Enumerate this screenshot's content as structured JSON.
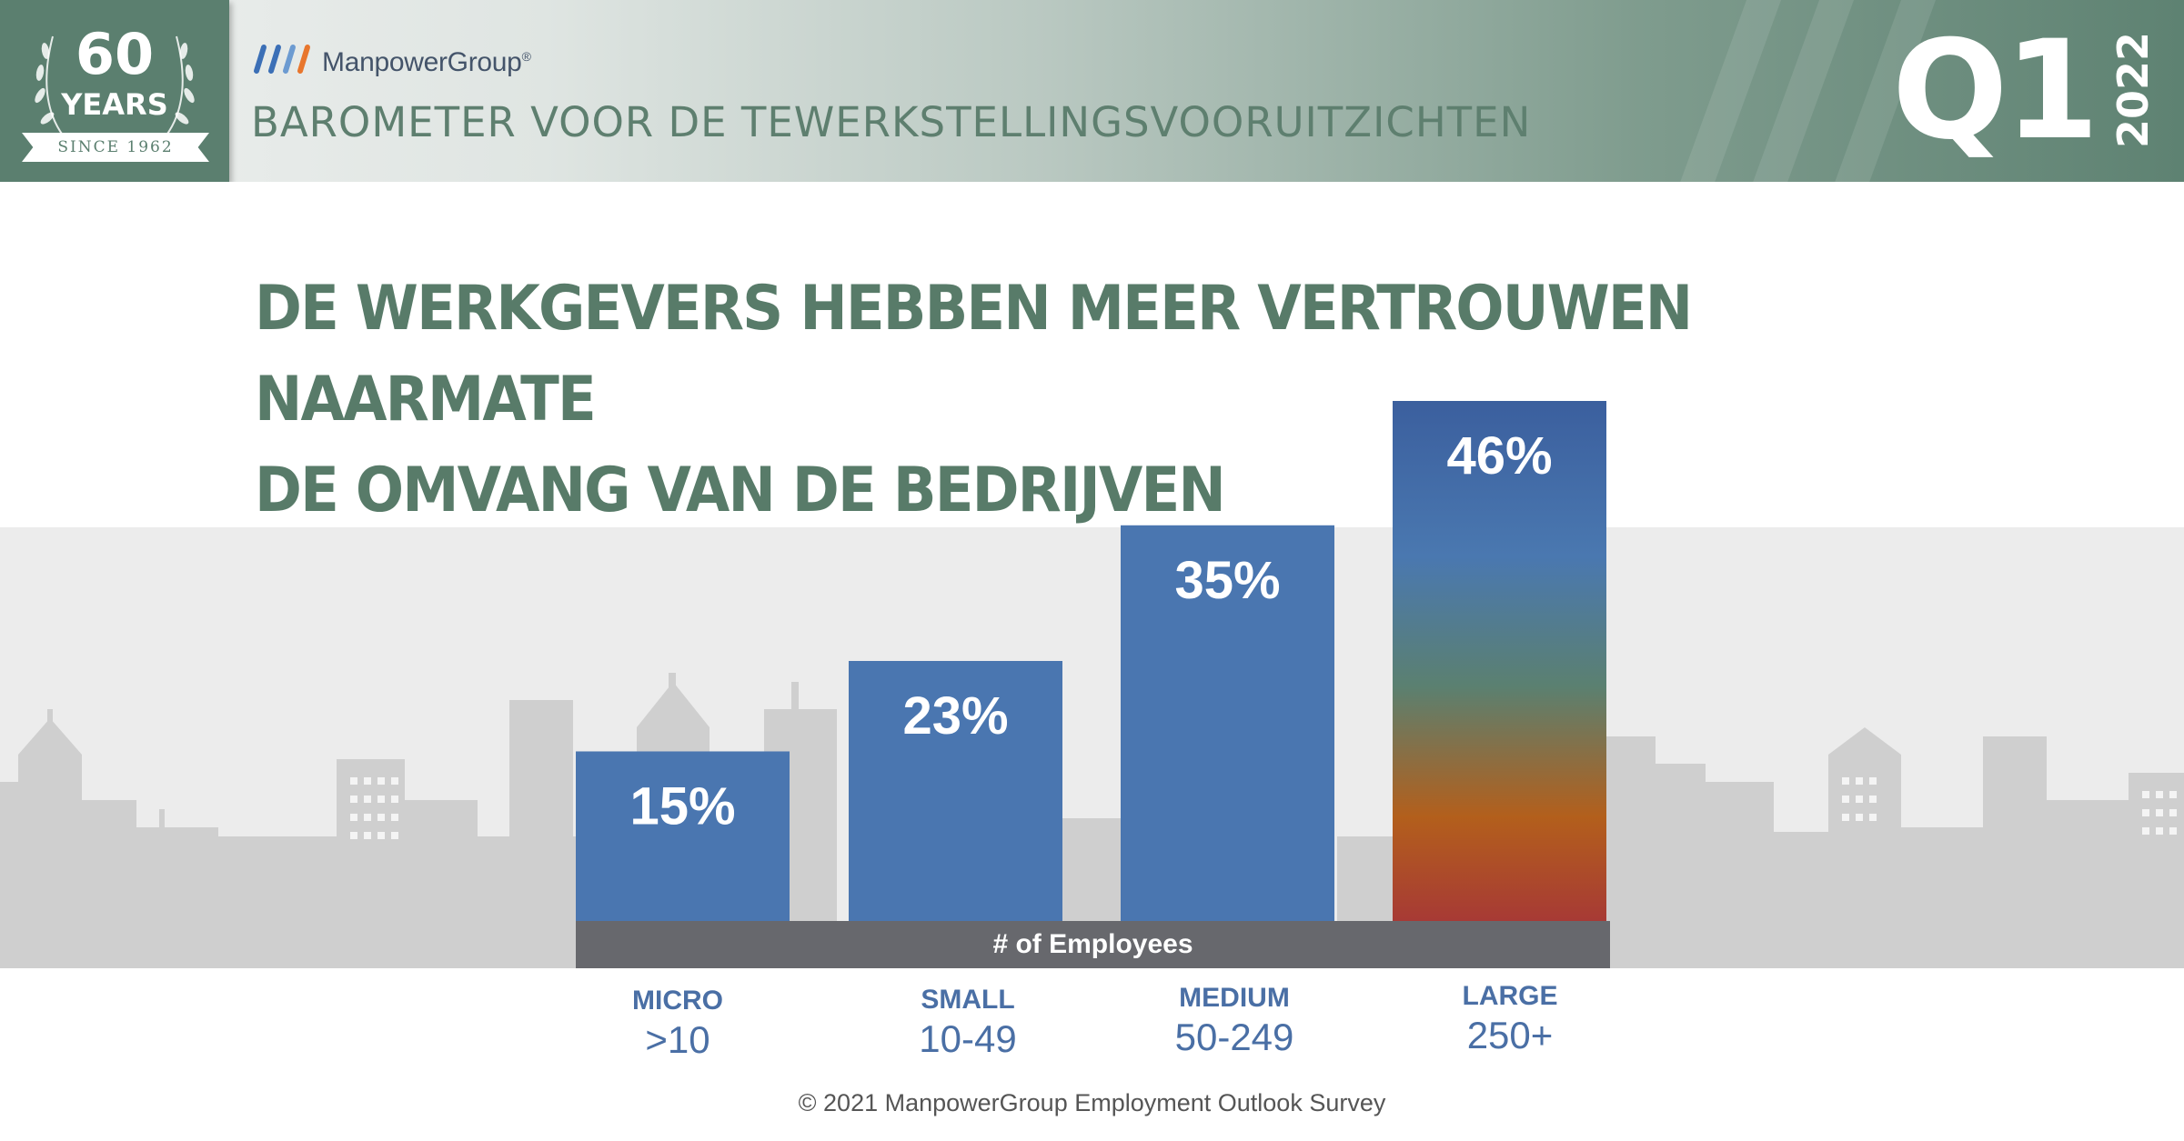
{
  "badge": {
    "sixty": "60",
    "years": "YEARS",
    "since": "SINCE 1962"
  },
  "brand": {
    "name": "ManpowerGroup",
    "trademark": "®",
    "mark_colors": [
      "#3b6fb6",
      "#3b6fb6",
      "#6c9bd1",
      "#e8762d"
    ]
  },
  "header": {
    "title": "BAROMETER VOOR DE TEWERKSTELLINGSVOORUITZICHTEN",
    "quarter": "Q1",
    "year": "2022"
  },
  "headline": {
    "line1": "DE WERKGEVERS HEBBEN MEER VERTROUWEN NAARMATE",
    "line2": "DE OMVANG VAN DE BEDRIJVEN"
  },
  "chart_data": {
    "type": "bar",
    "categories": [
      "MICRO",
      "SMALL",
      "MEDIUM",
      "LARGE"
    ],
    "category_ranges": [
      ">10",
      "10-49",
      "50-249",
      "250+"
    ],
    "values": [
      15,
      23,
      35,
      46
    ],
    "value_labels": [
      "15%",
      "23%",
      "35%",
      "46%"
    ],
    "xlabel": "# of Employees",
    "ylim": [
      0,
      46
    ],
    "colors": {
      "bar": "#4a76b0",
      "highlight_gradient": [
        "#3b5f9e",
        "#4a78b0",
        "#5b8070",
        "#b35f1c",
        "#a73a35"
      ],
      "axis_band": "#67686d",
      "category_text": "#4a6fa5"
    },
    "grid": false
  },
  "footer": {
    "copyright": "© 2021 ManpowerGroup Employment Outlook Survey"
  },
  "colors": {
    "header_green": "#5b7f6f",
    "headline_green": "#587b69",
    "skyline_bg": "#ececec",
    "skyline_buildings": "#cfcfcf"
  }
}
